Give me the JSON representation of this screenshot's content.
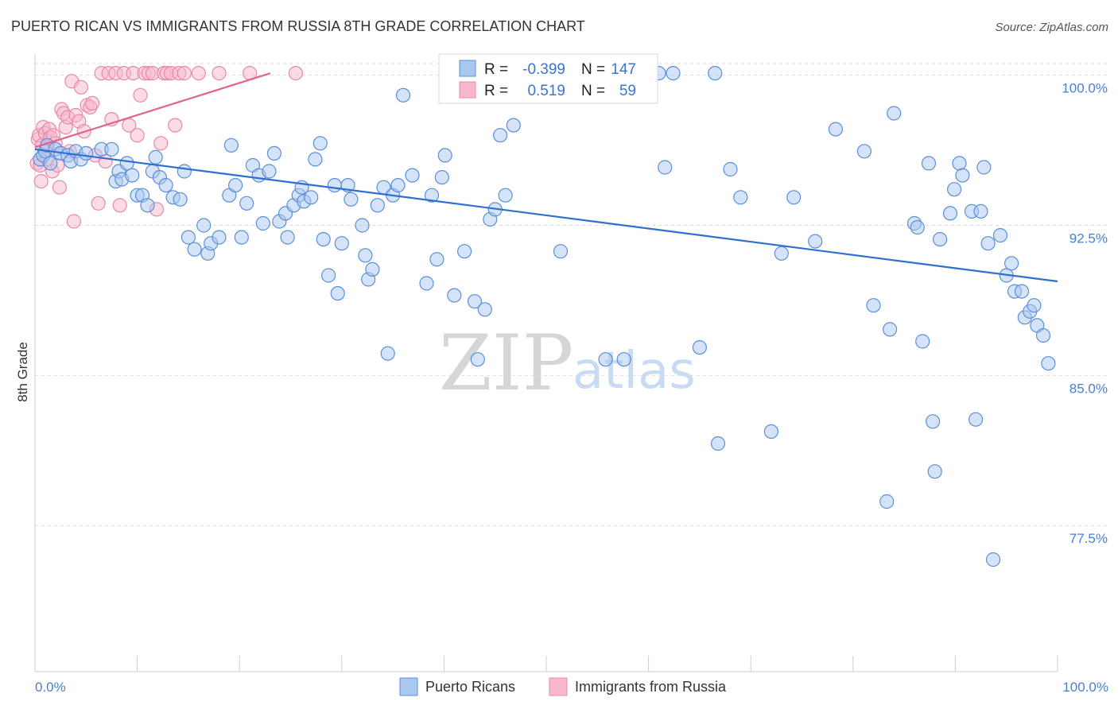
{
  "title": "PUERTO RICAN VS IMMIGRANTS FROM RUSSIA 8TH GRADE CORRELATION CHART",
  "source": "Source: ZipAtlas.com",
  "watermark": {
    "zip": "ZIP",
    "atlas": "atlas"
  },
  "colors": {
    "blue_fill": "#a9c8f0",
    "blue_stroke": "#5b8fd9",
    "blue_line": "#2f6fd0",
    "pink_fill": "#f7b8cd",
    "pink_stroke": "#e889a8",
    "pink_line": "#e0648d",
    "grid": "#dddddd",
    "axis_text": "#4a7fd0"
  },
  "stats": {
    "rows": [
      {
        "r_label": "R =",
        "r_value": "-0.399",
        "n_label": "N =",
        "n_value": "147"
      },
      {
        "r_label": "R =",
        "r_value": "0.519",
        "n_label": "N =",
        "n_value": "59"
      }
    ]
  },
  "legend": {
    "items": [
      "Puerto Ricans",
      "Immigrants from Russia"
    ]
  },
  "chart_data": {
    "type": "scatter",
    "ylabel": "8th Grade",
    "xlim": [
      0,
      100
    ],
    "ylim": [
      70.2,
      100.9
    ],
    "x_tick_labels": [
      "0.0%",
      "100.0%"
    ],
    "y_ticks": [
      {
        "value": 100.0,
        "label": "100.0%"
      },
      {
        "value": 92.5,
        "label": "92.5%"
      },
      {
        "value": 85.0,
        "label": "85.0%"
      },
      {
        "value": 77.5,
        "label": "77.5%"
      }
    ],
    "grid": "horizontal-dashed",
    "legend_position": "bottom-center",
    "series": [
      {
        "name": "Puerto Ricans",
        "color": "blue",
        "trend": {
          "x": [
            0,
            100
          ],
          "y": [
            96.3,
            89.7
          ]
        },
        "points": [
          [
            0.5,
            95.8
          ],
          [
            0.8,
            96.0
          ],
          [
            1.0,
            96.2
          ],
          [
            1.2,
            96.5
          ],
          [
            1.5,
            95.6
          ],
          [
            2.0,
            96.3
          ],
          [
            2.5,
            96.1
          ],
          [
            3.2,
            96.0
          ],
          [
            3.5,
            95.7
          ],
          [
            4.0,
            96.2
          ],
          [
            4.5,
            95.8
          ],
          [
            5.0,
            96.1
          ],
          [
            6.5,
            96.3
          ],
          [
            7.5,
            96.3
          ],
          [
            7.9,
            94.7
          ],
          [
            8.2,
            95.2
          ],
          [
            8.5,
            94.8
          ],
          [
            9.0,
            95.6
          ],
          [
            9.5,
            95.0
          ],
          [
            10.0,
            94.0
          ],
          [
            10.5,
            94.0
          ],
          [
            11.0,
            93.5
          ],
          [
            11.5,
            95.2
          ],
          [
            11.8,
            95.9
          ],
          [
            12.2,
            94.9
          ],
          [
            12.8,
            94.5
          ],
          [
            13.5,
            93.9
          ],
          [
            14.2,
            93.8
          ],
          [
            14.6,
            95.2
          ],
          [
            15.0,
            91.9
          ],
          [
            15.6,
            91.3
          ],
          [
            16.5,
            92.5
          ],
          [
            16.9,
            91.1
          ],
          [
            17.2,
            91.6
          ],
          [
            18.0,
            91.9
          ],
          [
            19.0,
            94.0
          ],
          [
            19.2,
            96.5
          ],
          [
            19.6,
            94.5
          ],
          [
            20.2,
            91.9
          ],
          [
            20.7,
            93.6
          ],
          [
            21.3,
            95.5
          ],
          [
            21.9,
            95.0
          ],
          [
            22.3,
            92.6
          ],
          [
            22.9,
            95.2
          ],
          [
            23.4,
            96.1
          ],
          [
            23.9,
            92.7
          ],
          [
            24.5,
            93.1
          ],
          [
            24.7,
            91.9
          ],
          [
            25.3,
            93.5
          ],
          [
            25.8,
            94.0
          ],
          [
            26.1,
            94.4
          ],
          [
            26.3,
            93.7
          ],
          [
            27.0,
            93.9
          ],
          [
            27.4,
            95.8
          ],
          [
            27.9,
            96.6
          ],
          [
            28.2,
            91.8
          ],
          [
            28.7,
            90.0
          ],
          [
            29.3,
            94.5
          ],
          [
            29.6,
            89.1
          ],
          [
            30.0,
            91.6
          ],
          [
            30.6,
            94.5
          ],
          [
            30.9,
            93.8
          ],
          [
            32.0,
            92.5
          ],
          [
            32.3,
            91.0
          ],
          [
            32.6,
            89.8
          ],
          [
            33.0,
            90.3
          ],
          [
            33.5,
            93.5
          ],
          [
            34.1,
            94.4
          ],
          [
            34.5,
            86.1
          ],
          [
            35.0,
            94.0
          ],
          [
            35.5,
            94.5
          ],
          [
            36.0,
            99.0
          ],
          [
            36.9,
            95.0
          ],
          [
            38.3,
            89.6
          ],
          [
            38.8,
            94.0
          ],
          [
            39.3,
            90.8
          ],
          [
            39.8,
            94.9
          ],
          [
            40.1,
            96.0
          ],
          [
            41.0,
            89.0
          ],
          [
            42.0,
            91.2
          ],
          [
            43.0,
            88.7
          ],
          [
            43.3,
            85.8
          ],
          [
            44.0,
            88.3
          ],
          [
            44.5,
            92.8
          ],
          [
            45.0,
            93.3
          ],
          [
            45.5,
            97.0
          ],
          [
            46.0,
            94.0
          ],
          [
            46.8,
            97.5
          ],
          [
            48.0,
            100.1
          ],
          [
            51.4,
            91.2
          ],
          [
            55.0,
            100.1
          ],
          [
            55.8,
            85.8
          ],
          [
            57.6,
            85.8
          ],
          [
            59.3,
            100.1
          ],
          [
            61.0,
            100.1
          ],
          [
            61.6,
            95.4
          ],
          [
            62.4,
            100.1
          ],
          [
            65.0,
            86.4
          ],
          [
            66.5,
            100.1
          ],
          [
            66.8,
            81.6
          ],
          [
            68.0,
            95.3
          ],
          [
            69.0,
            93.9
          ],
          [
            72.0,
            82.2
          ],
          [
            73.0,
            91.1
          ],
          [
            74.2,
            93.9
          ],
          [
            76.3,
            91.7
          ],
          [
            78.3,
            97.3
          ],
          [
            81.1,
            96.2
          ],
          [
            82.0,
            88.5
          ],
          [
            83.3,
            78.7
          ],
          [
            83.6,
            87.3
          ],
          [
            84.0,
            98.1
          ],
          [
            86.0,
            92.6
          ],
          [
            86.3,
            92.4
          ],
          [
            86.8,
            86.7
          ],
          [
            87.4,
            95.6
          ],
          [
            87.8,
            82.7
          ],
          [
            88.0,
            80.2
          ],
          [
            88.5,
            91.8
          ],
          [
            89.5,
            93.1
          ],
          [
            89.9,
            94.3
          ],
          [
            90.4,
            95.6
          ],
          [
            90.7,
            95.0
          ],
          [
            91.6,
            93.2
          ],
          [
            92.0,
            82.8
          ],
          [
            92.5,
            93.2
          ],
          [
            92.8,
            95.4
          ],
          [
            93.2,
            91.6
          ],
          [
            93.7,
            75.8
          ],
          [
            94.4,
            92.0
          ],
          [
            95.0,
            90.0
          ],
          [
            95.5,
            90.6
          ],
          [
            95.8,
            89.2
          ],
          [
            96.5,
            89.2
          ],
          [
            96.8,
            87.9
          ],
          [
            97.3,
            88.2
          ],
          [
            97.7,
            88.5
          ],
          [
            98.0,
            87.5
          ],
          [
            98.6,
            87.0
          ],
          [
            99.1,
            85.6
          ]
        ]
      },
      {
        "name": "Immigrants from Russia",
        "color": "pink",
        "trend": {
          "x": [
            0,
            23.0
          ],
          "y": [
            96.4,
            100.1
          ]
        },
        "points": [
          [
            0.2,
            95.6
          ],
          [
            0.3,
            96.8
          ],
          [
            0.4,
            97.0
          ],
          [
            0.5,
            95.5
          ],
          [
            0.6,
            94.7
          ],
          [
            0.7,
            96.5
          ],
          [
            0.8,
            97.4
          ],
          [
            1.0,
            97.1
          ],
          [
            1.1,
            96.3
          ],
          [
            1.2,
            95.8
          ],
          [
            1.4,
            97.3
          ],
          [
            1.5,
            96.9
          ],
          [
            1.7,
            95.2
          ],
          [
            1.8,
            97.0
          ],
          [
            2.0,
            96.6
          ],
          [
            2.2,
            95.5
          ],
          [
            2.4,
            94.4
          ],
          [
            2.6,
            98.3
          ],
          [
            2.8,
            98.1
          ],
          [
            3.0,
            97.4
          ],
          [
            3.2,
            97.9
          ],
          [
            3.4,
            96.2
          ],
          [
            3.6,
            99.7
          ],
          [
            3.8,
            92.7
          ],
          [
            4.0,
            98.0
          ],
          [
            4.3,
            97.7
          ],
          [
            4.5,
            99.4
          ],
          [
            4.8,
            97.2
          ],
          [
            5.1,
            98.5
          ],
          [
            5.4,
            98.4
          ],
          [
            5.6,
            98.6
          ],
          [
            5.9,
            96.0
          ],
          [
            6.2,
            93.6
          ],
          [
            6.5,
            100.1
          ],
          [
            6.9,
            95.7
          ],
          [
            7.2,
            100.1
          ],
          [
            7.5,
            97.8
          ],
          [
            7.9,
            100.1
          ],
          [
            8.3,
            93.5
          ],
          [
            8.7,
            100.1
          ],
          [
            9.2,
            97.5
          ],
          [
            9.6,
            100.1
          ],
          [
            10.0,
            97.0
          ],
          [
            10.3,
            99.0
          ],
          [
            10.7,
            100.1
          ],
          [
            11.1,
            100.1
          ],
          [
            11.5,
            100.1
          ],
          [
            11.9,
            93.3
          ],
          [
            12.3,
            96.6
          ],
          [
            12.6,
            100.1
          ],
          [
            12.9,
            100.1
          ],
          [
            13.3,
            100.1
          ],
          [
            13.7,
            97.5
          ],
          [
            14.1,
            100.1
          ],
          [
            14.6,
            100.1
          ],
          [
            16.0,
            100.1
          ],
          [
            18.0,
            100.1
          ],
          [
            21.0,
            100.1
          ],
          [
            25.5,
            100.1
          ]
        ]
      }
    ]
  }
}
